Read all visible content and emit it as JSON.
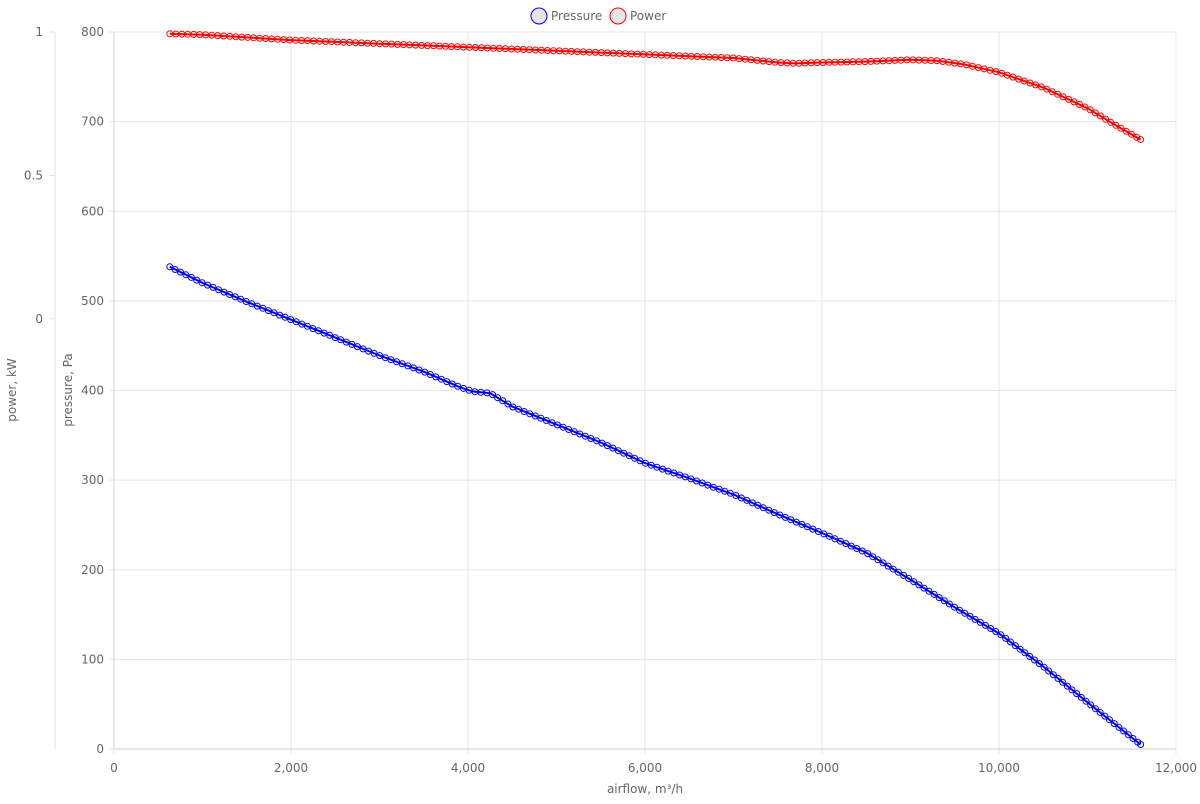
{
  "chart_data": {
    "type": "line",
    "legend": {
      "position": "top-center",
      "items": [
        {
          "label": "Pressure",
          "color": "#0000ff"
        },
        {
          "label": "Power",
          "color": "#ff0000"
        }
      ]
    },
    "xlabel": "airflow, m³/h",
    "ylabel_left_outer": "power, kW",
    "ylabel_left_inner": "pressure, Pa",
    "xlim": [
      0,
      12000
    ],
    "ylim_pressure": [
      0,
      800
    ],
    "ylim_power": [
      -1.5,
      1
    ],
    "grid": true,
    "x_ticks": [
      0,
      2000,
      4000,
      6000,
      8000,
      10000,
      12000
    ],
    "x_tick_labels": [
      "0",
      "2,000",
      "4,000",
      "6,000",
      "8,000",
      "10,000",
      "12,000"
    ],
    "pressure_ticks": [
      0,
      100,
      200,
      300,
      400,
      500,
      600,
      700,
      800
    ],
    "pressure_tick_labels": [
      "0",
      "100",
      "200",
      "300",
      "400",
      "500",
      "600",
      "700",
      "800"
    ],
    "power_ticks": [
      1,
      0.5,
      0
    ],
    "power_tick_labels": [
      "1",
      "0.5",
      "0"
    ],
    "series": [
      {
        "name": "Pressure",
        "color": "#0000ff",
        "axis": "pressure",
        "points": [
          [
            630,
            538
          ],
          [
            1000,
            520
          ],
          [
            1500,
            499
          ],
          [
            2000,
            479
          ],
          [
            2500,
            459
          ],
          [
            3000,
            439
          ],
          [
            3500,
            421
          ],
          [
            3900,
            404
          ],
          [
            4050,
            399
          ],
          [
            4250,
            397
          ],
          [
            4500,
            382
          ],
          [
            5000,
            362
          ],
          [
            5500,
            342
          ],
          [
            6000,
            319
          ],
          [
            6500,
            302
          ],
          [
            7000,
            284
          ],
          [
            7500,
            262
          ],
          [
            8000,
            241
          ],
          [
            8500,
            219
          ],
          [
            9000,
            189
          ],
          [
            9500,
            158
          ],
          [
            10000,
            129
          ],
          [
            10500,
            92
          ],
          [
            11000,
            52
          ],
          [
            11600,
            5
          ]
        ]
      },
      {
        "name": "Power",
        "color": "#ff0000",
        "axis": "pressure",
        "points": [
          [
            630,
            798
          ],
          [
            1000,
            797
          ],
          [
            1500,
            794
          ],
          [
            2000,
            791
          ],
          [
            2500,
            789
          ],
          [
            3000,
            787
          ],
          [
            3500,
            785
          ],
          [
            4000,
            783
          ],
          [
            4500,
            781
          ],
          [
            5000,
            779
          ],
          [
            5500,
            777
          ],
          [
            6000,
            775
          ],
          [
            6500,
            773
          ],
          [
            7000,
            771
          ],
          [
            7500,
            766
          ],
          [
            7700,
            765
          ],
          [
            8000,
            766
          ],
          [
            8500,
            767
          ],
          [
            9000,
            769
          ],
          [
            9300,
            768
          ],
          [
            9600,
            764
          ],
          [
            10000,
            755
          ],
          [
            10500,
            738
          ],
          [
            11000,
            715
          ],
          [
            11300,
            697
          ],
          [
            11600,
            680
          ]
        ]
      }
    ]
  }
}
